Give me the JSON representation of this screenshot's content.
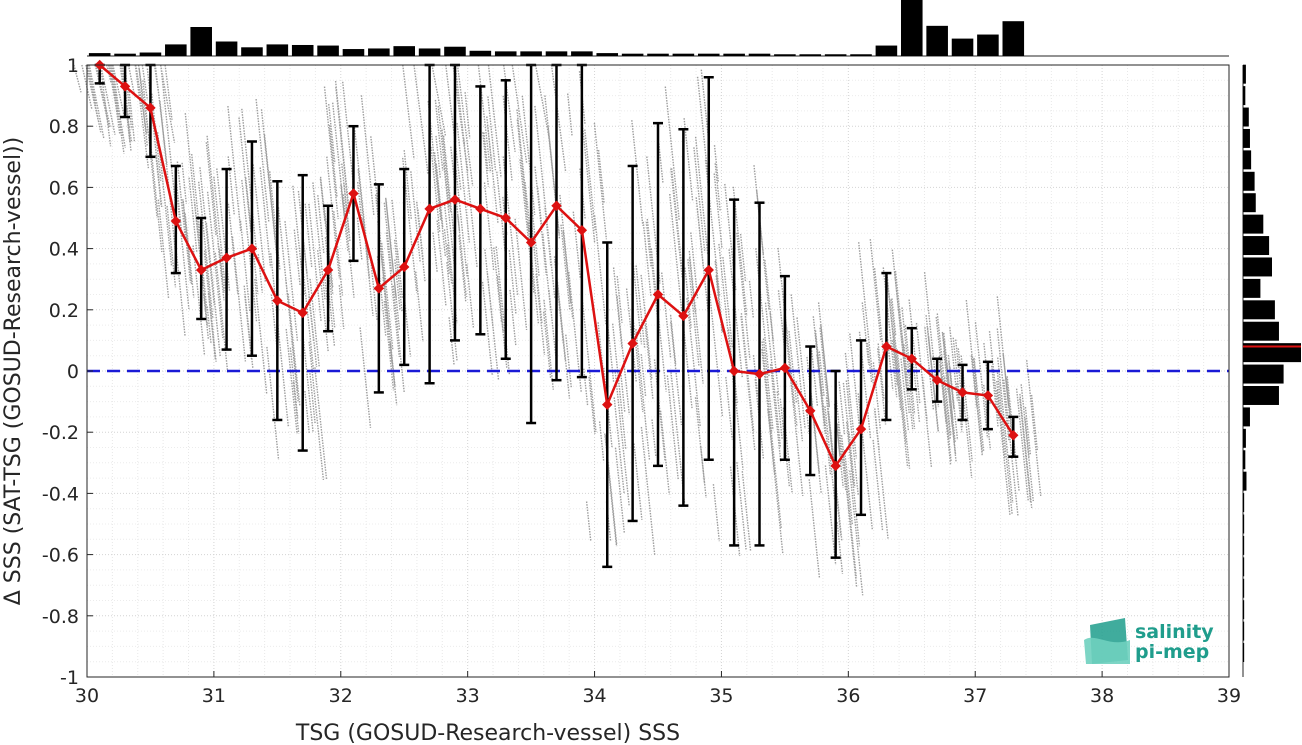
{
  "chart_data": {
    "type": "scatter",
    "title": "",
    "xlabel": "TSG (GOSUD-Research-vessel) SSS",
    "ylabel": "Δ SSS (SAT-TSG (GOSUD-Research-vessel))",
    "xlim": [
      30,
      39
    ],
    "ylim": [
      -1,
      1
    ],
    "xticks": [
      "30",
      "31",
      "32",
      "33",
      "34",
      "35",
      "36",
      "37",
      "38",
      "39"
    ],
    "yticks": [
      "1",
      "0.8",
      "0.6",
      "0.4",
      "0.2",
      "0",
      "-0.2",
      "-0.4",
      "-0.6",
      "-0.8",
      "-1"
    ],
    "grid": true,
    "reference_line": {
      "y": 0,
      "style": "dashed",
      "color": "#1a1ad6"
    },
    "colors": {
      "mean": "#dd1111",
      "errorbar": "#000000",
      "scatter": "#8c8c8c",
      "reference": "#1a1ad6",
      "logo": "#1f9d8c"
    },
    "series": [
      {
        "x": [
          30.1,
          30.3,
          30.5,
          30.7,
          30.9,
          31.1,
          31.3,
          31.5,
          31.7,
          31.9,
          32.1,
          32.3,
          32.5,
          32.7,
          32.9,
          33.1,
          33.3,
          33.5,
          33.7,
          33.9,
          34.1,
          34.3,
          34.5,
          34.7,
          34.9,
          35.1,
          35.3,
          35.5,
          35.7,
          35.9,
          36.1,
          36.3,
          36.5,
          36.7,
          36.9,
          37.1,
          37.3
        ],
        "y": [
          1.0,
          0.93,
          0.86,
          0.49,
          0.33,
          0.37,
          0.4,
          0.23,
          0.19,
          0.33,
          0.58,
          0.27,
          0.34,
          0.53,
          0.56,
          0.53,
          0.5,
          0.42,
          0.54,
          0.46,
          -0.11,
          0.09,
          0.25,
          0.18,
          0.33,
          0.0,
          -0.01,
          0.01,
          -0.13,
          -0.31,
          -0.19,
          0.08,
          0.04,
          -0.03,
          -0.07,
          -0.08,
          -0.21
        ],
        "err_low": [
          0.94,
          0.83,
          0.7,
          0.32,
          0.17,
          0.07,
          0.05,
          -0.16,
          -0.26,
          0.13,
          0.36,
          -0.07,
          0.02,
          -0.04,
          0.1,
          0.12,
          0.04,
          -0.17,
          -0.03,
          -0.02,
          -0.64,
          -0.49,
          -0.31,
          -0.44,
          -0.29,
          -0.57,
          -0.57,
          -0.29,
          -0.34,
          -0.61,
          -0.47,
          -0.16,
          -0.06,
          -0.1,
          -0.16,
          -0.19,
          -0.28
        ],
        "err_high": [
          1.0,
          1.0,
          1.0,
          0.67,
          0.5,
          0.66,
          0.75,
          0.62,
          0.64,
          0.54,
          0.8,
          0.61,
          0.66,
          1.0,
          1.0,
          0.93,
          0.95,
          1.0,
          1.0,
          1.0,
          0.42,
          0.67,
          0.81,
          0.79,
          0.96,
          0.56,
          0.55,
          0.31,
          0.08,
          0.0,
          0.1,
          0.32,
          0.14,
          0.04,
          0.02,
          0.03,
          -0.15
        ]
      }
    ],
    "top_histogram": {
      "x_bins": [
        30.1,
        30.3,
        30.5,
        30.7,
        30.9,
        31.1,
        31.3,
        31.5,
        31.7,
        31.9,
        32.1,
        32.3,
        32.5,
        32.7,
        32.9,
        33.1,
        33.3,
        33.5,
        33.7,
        33.9,
        34.1,
        34.3,
        34.5,
        34.7,
        34.9,
        35.1,
        35.3,
        35.5,
        35.7,
        35.9,
        36.1,
        36.3,
        36.5,
        36.7,
        36.9,
        37.1,
        37.3
      ],
      "counts": [
        0.05,
        0.04,
        0.06,
        0.2,
        0.5,
        0.25,
        0.15,
        0.2,
        0.19,
        0.18,
        0.12,
        0.13,
        0.17,
        0.13,
        0.16,
        0.09,
        0.08,
        0.08,
        0.08,
        0.08,
        0.05,
        0.04,
        0.04,
        0.04,
        0.04,
        0.04,
        0.04,
        0.03,
        0.03,
        0.03,
        0.03,
        0.18,
        1.0,
        0.52,
        0.3,
        0.37,
        0.6
      ]
    },
    "right_histogram": {
      "y_bins": [
        0.97,
        0.9,
        0.83,
        0.76,
        0.69,
        0.62,
        0.55,
        0.48,
        0.41,
        0.34,
        0.27,
        0.2,
        0.13,
        0.06,
        -0.01,
        -0.08,
        -0.15,
        -0.22,
        -0.29,
        -0.36,
        -0.43,
        -0.5,
        -0.57,
        -0.64,
        -0.71,
        -0.78,
        -0.85,
        -0.92
      ],
      "counts": [
        0.05,
        0.04,
        0.1,
        0.12,
        0.14,
        0.2,
        0.22,
        0.35,
        0.45,
        0.5,
        0.3,
        0.55,
        0.62,
        1.0,
        0.7,
        0.62,
        0.12,
        0.05,
        0.04,
        0.06,
        0.02,
        0.02,
        0.02,
        0.02,
        0.02,
        0.02,
        0.02,
        0.02
      ],
      "mean_marker_y": 0.08
    }
  },
  "logo": {
    "line1": "salinity",
    "line2": "pi-mep"
  }
}
